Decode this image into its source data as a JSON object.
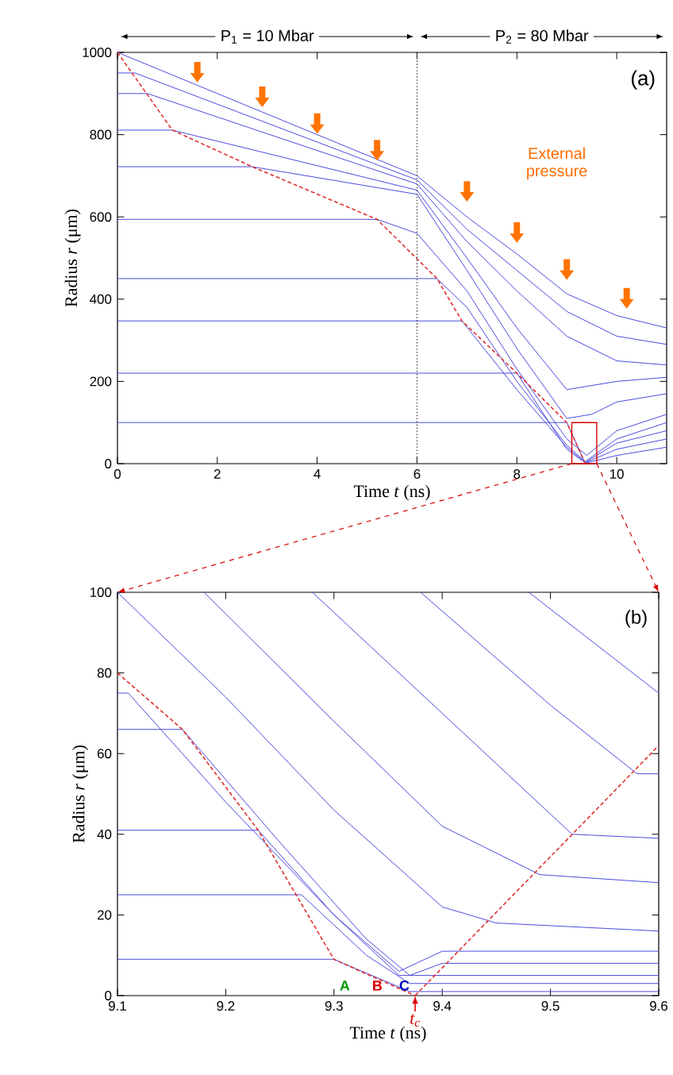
{
  "chart_data": [
    {
      "type": "line",
      "xlabel": "Time *t* (ns)",
      "ylabel": "Radius *r* (μm)",
      "xlim": [
        0,
        11
      ],
      "ylim": [
        0,
        1000
      ],
      "xticks": [
        0,
        2,
        4,
        6,
        8,
        10
      ],
      "yticks": [
        0,
        200,
        400,
        600,
        800,
        1000
      ],
      "annotations": [
        "P$_{1}$ = 10 Mbar",
        "P$_{2}$ = 80 Mbar",
        "(a)",
        "External pressure"
      ],
      "ref_lines": [
        {
          "axis": "x",
          "value": 6,
          "color": "#444444",
          "line_style": "dotted"
        }
      ],
      "series": [
        {
          "color": "#4a4ae0",
          "x": [
            0,
            6,
            7,
            8,
            9,
            10,
            11
          ],
          "values": [
            1000,
            700,
            600,
            510,
            413,
            360,
            330
          ]
        },
        {
          "color": "#4a4ae0",
          "x": [
            0,
            0.35,
            6,
            7,
            8,
            9,
            10,
            11
          ],
          "values": [
            950,
            950,
            690,
            570,
            470,
            370,
            310,
            290
          ]
        },
        {
          "color": "#4a4ae0",
          "x": [
            0,
            0.6,
            6,
            7,
            8,
            9,
            10,
            11
          ],
          "values": [
            900,
            900,
            680,
            540,
            420,
            310,
            250,
            240
          ]
        },
        {
          "color": "#4a4ae0",
          "x": [
            0,
            1.1,
            6,
            7,
            8,
            9,
            10,
            11
          ],
          "values": [
            811,
            811,
            665,
            500,
            330,
            180,
            200,
            210
          ]
        },
        {
          "color": "#4a4ae0",
          "x": [
            0,
            2.7,
            6,
            7,
            8,
            9,
            9.5,
            10,
            11
          ],
          "values": [
            722,
            722,
            655,
            470,
            280,
            110,
            120,
            150,
            170
          ]
        },
        {
          "color": "#4a4ae0",
          "x": [
            0,
            5.2,
            6,
            7,
            8,
            9,
            9.4,
            10,
            11
          ],
          "values": [
            594,
            594,
            560,
            420,
            230,
            60,
            20,
            80,
            120
          ]
        },
        {
          "color": "#4a4ae0",
          "x": [
            0,
            6.4,
            7,
            8,
            9,
            9.37,
            10,
            11
          ],
          "values": [
            450,
            450,
            380,
            200,
            45,
            5,
            60,
            100
          ]
        },
        {
          "color": "#4a4ae0",
          "x": [
            0,
            6.9,
            8,
            9,
            9.37,
            10,
            11
          ],
          "values": [
            347,
            347,
            180,
            40,
            3,
            50,
            80
          ]
        },
        {
          "color": "#4a4ae0",
          "x": [
            0,
            8,
            9,
            9.37,
            10,
            11
          ],
          "values": [
            220,
            220,
            35,
            2,
            35,
            60
          ]
        },
        {
          "color": "#4a4ae0",
          "x": [
            0,
            9,
            9.37,
            10,
            11
          ],
          "values": [
            100,
            100,
            1,
            20,
            40
          ]
        },
        {
          "color": "#e03030",
          "line_style": "dashed",
          "x": [
            0,
            1.1,
            2.7,
            5.2,
            6.4,
            6.9,
            8,
            9,
            9.37
          ],
          "values": [
            1000,
            811,
            722,
            594,
            450,
            347,
            220,
            100,
            0
          ]
        }
      ]
    },
    {
      "type": "line",
      "xlabel": "Time *t* (ns)",
      "ylabel": "Radius *r* (μm)",
      "xlim": [
        9.1,
        9.6
      ],
      "ylim": [
        0,
        100
      ],
      "xticks": [
        9.1,
        9.2,
        9.3,
        9.4,
        9.5,
        9.6
      ],
      "yticks": [
        0,
        20,
        40,
        60,
        80,
        100
      ],
      "annotations": [
        "(b)",
        "A",
        "B",
        "C",
        "t$_{c}$"
      ],
      "series": [
        {
          "color": "#4a4ae0",
          "x": [
            9.1,
            9.11,
            9.2,
            9.3,
            9.36,
            9.4,
            9.6
          ],
          "values": [
            75,
            75,
            48,
            20,
            6,
            11,
            11
          ]
        },
        {
          "color": "#4a4ae0",
          "x": [
            9.1,
            9.16,
            9.25,
            9.33,
            9.37,
            9.4,
            9.6
          ],
          "values": [
            66,
            66,
            38,
            14,
            5,
            8,
            8
          ]
        },
        {
          "color": "#4a4ae0",
          "x": [
            9.1,
            9.23,
            9.3,
            9.36,
            9.4,
            9.6
          ],
          "values": [
            41,
            41,
            20,
            5,
            5,
            5
          ]
        },
        {
          "color": "#4a4ae0",
          "x": [
            9.1,
            9.27,
            9.33,
            9.37,
            9.4,
            9.6
          ],
          "values": [
            25,
            25,
            10,
            3,
            3,
            3
          ]
        },
        {
          "color": "#4a4ae0",
          "x": [
            9.1,
            9.3,
            9.37,
            9.4,
            9.6
          ],
          "values": [
            9,
            9,
            1,
            1,
            1
          ]
        },
        {
          "color": "#4a4ae0",
          "x": [
            9.1,
            9.2,
            9.3,
            9.4,
            9.45,
            9.6
          ],
          "values": [
            100,
            74,
            46,
            22,
            18,
            16
          ]
        },
        {
          "color": "#4a4ae0",
          "x": [
            9.18,
            9.3,
            9.4,
            9.49,
            9.6
          ],
          "values": [
            100,
            68,
            42,
            30,
            28
          ]
        },
        {
          "color": "#4a4ae0",
          "x": [
            9.28,
            9.4,
            9.52,
            9.6
          ],
          "values": [
            100,
            70,
            40,
            39
          ]
        },
        {
          "color": "#4a4ae0",
          "x": [
            9.38,
            9.5,
            9.58,
            9.6
          ],
          "values": [
            100,
            72,
            55,
            55
          ]
        },
        {
          "color": "#4a4ae0",
          "x": [
            9.48,
            9.6
          ],
          "values": [
            100,
            75
          ]
        },
        {
          "color": "#e03030",
          "line_style": "dashed",
          "x": [
            9.1,
            9.16,
            9.23,
            9.3,
            9.375
          ],
          "values": [
            80,
            66,
            41,
            9,
            0
          ]
        },
        {
          "color": "#e03030",
          "line_style": "dashed",
          "x": [
            9.375,
            9.6
          ],
          "values": [
            0,
            62
          ]
        }
      ]
    }
  ]
}
